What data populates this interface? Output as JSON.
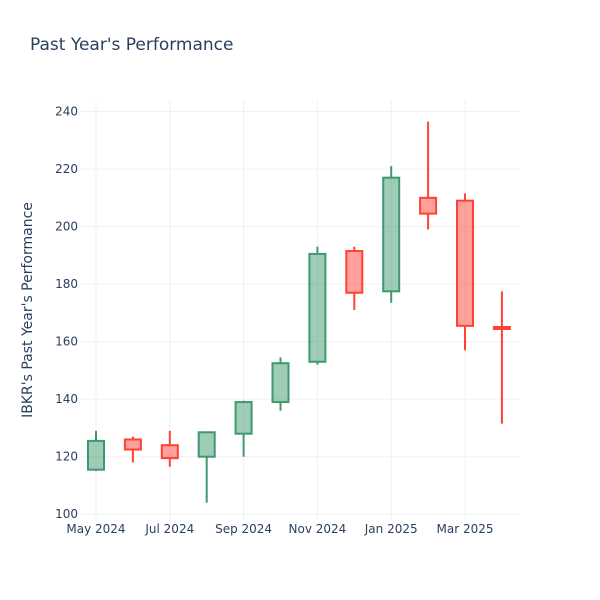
{
  "chart_data": {
    "type": "candlestick",
    "title": "Past Year's Performance",
    "xlabel": "",
    "ylabel": "IBKR's Past Year's Performance",
    "ylim": [
      98,
      244
    ],
    "yticks": [
      100,
      120,
      140,
      160,
      180,
      200,
      220,
      240
    ],
    "xticks": [
      "May 2024",
      "Jul 2024",
      "Sep 2024",
      "Nov 2024",
      "Jan 2025",
      "Mar 2025"
    ],
    "increasing_color": "#3d9970",
    "decreasing_color": "#ff4136",
    "candles": [
      {
        "period": "May 2024",
        "open": 115.5,
        "high": 129,
        "low": 115,
        "close": 125.5
      },
      {
        "period": "Jun 2024",
        "open": 126,
        "high": 127,
        "low": 118,
        "close": 122.5
      },
      {
        "period": "Jul 2024",
        "open": 124,
        "high": 129,
        "low": 116.5,
        "close": 119.5
      },
      {
        "period": "Aug 2024",
        "open": 120,
        "high": 128.5,
        "low": 104,
        "close": 128.5
      },
      {
        "period": "Sep 2024",
        "open": 128,
        "high": 139.5,
        "low": 120,
        "close": 139
      },
      {
        "period": "Oct 2024",
        "open": 139,
        "high": 154.5,
        "low": 136,
        "close": 152.5
      },
      {
        "period": "Nov 2024",
        "open": 153,
        "high": 193,
        "low": 152,
        "close": 190.5
      },
      {
        "period": "Dec 2024",
        "open": 191.5,
        "high": 193,
        "low": 171,
        "close": 177
      },
      {
        "period": "Jan 2025",
        "open": 177.5,
        "high": 221,
        "low": 173.5,
        "close": 217
      },
      {
        "period": "Feb 2025",
        "open": 210,
        "high": 236.5,
        "low": 199,
        "close": 204.5
      },
      {
        "period": "Mar 2025",
        "open": 209,
        "high": 211.5,
        "low": 157,
        "close": 165.5
      },
      {
        "period": "Apr 2025",
        "open": 165,
        "high": 177.5,
        "low": 131.5,
        "close": 164.5
      }
    ]
  }
}
